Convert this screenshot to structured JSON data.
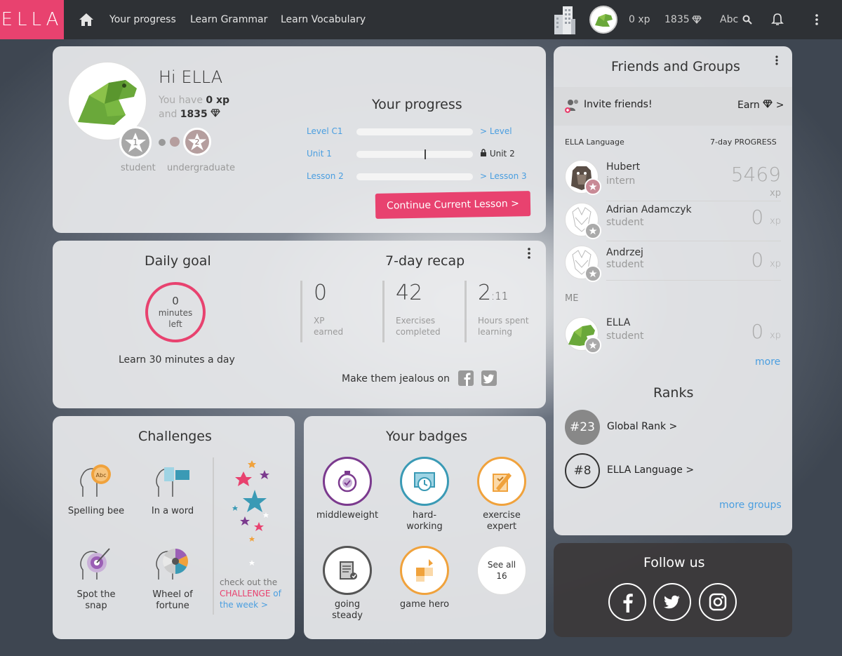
{
  "topbar": {
    "logo": "ELLA",
    "nav": [
      "Your progress",
      "Learn Grammar",
      "Learn Vocabulary"
    ],
    "xp": "0 xp",
    "gems": "1835",
    "lang": "Abc"
  },
  "profile": {
    "greeting": "Hi ELLA",
    "you_have": "You have",
    "xp": "0 xp",
    "and": "and",
    "gems": "1835",
    "level1_num": "1",
    "level2_num": "2",
    "level1": "student",
    "level2": "undergraduate"
  },
  "progress": {
    "title": "Your progress",
    "rows": [
      {
        "left": "Level C1",
        "right": "> Level",
        "fill": 0
      },
      {
        "left": "Unit 1",
        "right": "Unit 2",
        "fill": 0.59
      },
      {
        "left": "Lesson 2",
        "right": "> Lesson 3",
        "fill": 0
      }
    ],
    "button": "Continue Current Lesson >"
  },
  "daily": {
    "title": "Daily goal",
    "num": "0",
    "l1": "minutes",
    "l2": "left",
    "caption": "Learn 30 minutes a day"
  },
  "recap": {
    "title": "7-day recap",
    "stats": [
      {
        "n": "0",
        "sub": "",
        "l1": "XP",
        "l2": "earned"
      },
      {
        "n": "42",
        "sub": "",
        "l1": "Exercises",
        "l2": "completed"
      },
      {
        "n": "2",
        "sub": ":11",
        "l1": "Hours spent",
        "l2": "learning"
      }
    ],
    "share": "Make them jealous on"
  },
  "challenges": {
    "title": "Challenges",
    "items": [
      "Spelling bee",
      "In a word",
      "Spot the",
      "snap",
      "Wheel of",
      "fortune"
    ],
    "bubble": "Abc",
    "cta1": "check out the",
    "cta2": "CHALLENGE",
    "cta3": "of",
    "cta4": "the week >"
  },
  "badges": {
    "title": "Your badges",
    "items": [
      {
        "l1": "middleweight",
        "l2": ""
      },
      {
        "l1": "hard-",
        "l2": "working"
      },
      {
        "l1": "exercise",
        "l2": "expert"
      },
      {
        "l1": "going",
        "l2": "steady"
      },
      {
        "l1": "game hero",
        "l2": ""
      }
    ],
    "see_all1": "See all",
    "see_all2": "16"
  },
  "friends": {
    "title": "Friends and Groups",
    "invite": "Invite friends!",
    "earn": "Earn",
    "earn_arrow": ">",
    "group": "ELLA Language",
    "period": "7-day PROGRESS",
    "list": [
      {
        "name": "Hubert",
        "level": "intern",
        "xp": "5469"
      },
      {
        "name": "Adrian Adamczyk",
        "level": "student",
        "xp": "0"
      },
      {
        "name": "Andrzej",
        "level": "student",
        "xp": "0"
      }
    ],
    "me_label": "ME",
    "me": {
      "name": "ELLA",
      "level": "student",
      "xp": "0"
    },
    "xp_unit": "xp",
    "more": "more"
  },
  "ranks": {
    "title": "Ranks",
    "items": [
      {
        "rank": "#23",
        "label": "Global Rank >"
      },
      {
        "rank": "#8",
        "label": "ELLA Language >"
      }
    ],
    "more": "more groups"
  },
  "follow": {
    "title": "Follow us"
  },
  "colors": {
    "brand": "#e8426f",
    "link": "#4a9ee0",
    "purple": "#7b3a8e",
    "teal": "#3a9ab5",
    "orange": "#f0a23c"
  }
}
